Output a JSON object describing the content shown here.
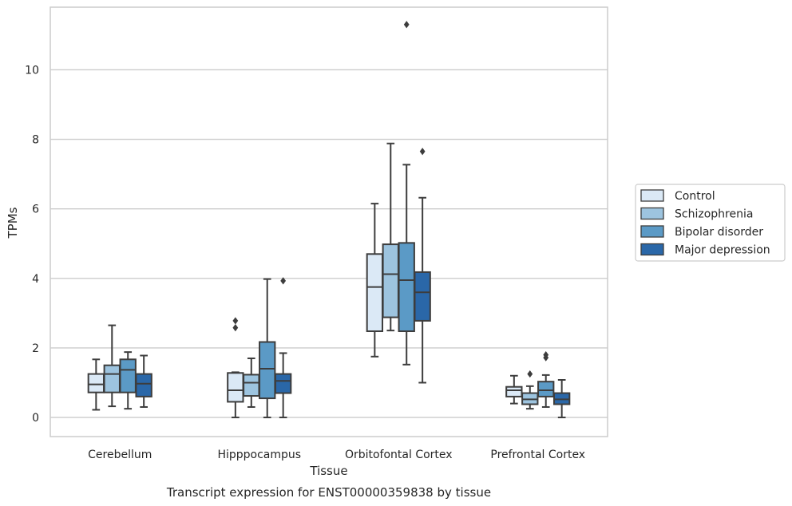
{
  "chart_data": {
    "type": "box",
    "title": "Transcript expression for ENST00000359838 by tissue",
    "xlabel": "Tissue",
    "ylabel": "TPMs",
    "ylim": [
      -0.55,
      11.8
    ],
    "yticks": [
      0,
      2,
      4,
      6,
      8,
      10
    ],
    "grid": "horizontal",
    "legend_position": "right",
    "categories": [
      "Cerebellum",
      "Hipppocampus",
      "Orbitofontal Cortex",
      "Prefrontal Cortex"
    ],
    "series": [
      {
        "name": "Control",
        "color": "#dbe9f6",
        "boxes": [
          {
            "min": 0.22,
            "q1": 0.72,
            "median": 0.95,
            "q3": 1.25,
            "max": 1.67,
            "outliers": []
          },
          {
            "min": 0.0,
            "q1": 0.45,
            "median": 0.78,
            "q3": 1.28,
            "max": 1.3,
            "outliers": [
              2.78,
              2.58
            ]
          },
          {
            "min": 1.75,
            "q1": 2.48,
            "median": 3.75,
            "q3": 4.7,
            "max": 6.15,
            "outliers": []
          },
          {
            "min": 0.4,
            "q1": 0.6,
            "median": 0.78,
            "q3": 0.88,
            "max": 1.2,
            "outliers": []
          }
        ]
      },
      {
        "name": "Schizophrenia",
        "color": "#9dc4df",
        "boxes": [
          {
            "min": 0.32,
            "q1": 0.72,
            "median": 1.25,
            "q3": 1.5,
            "max": 2.65,
            "outliers": []
          },
          {
            "min": 0.3,
            "q1": 0.62,
            "median": 1.0,
            "q3": 1.23,
            "max": 1.7,
            "outliers": []
          },
          {
            "min": 2.5,
            "q1": 2.88,
            "median": 4.12,
            "q3": 4.98,
            "max": 7.88,
            "outliers": []
          },
          {
            "min": 0.25,
            "q1": 0.38,
            "median": 0.52,
            "q3": 0.7,
            "max": 0.9,
            "outliers": [
              1.25
            ]
          }
        ]
      },
      {
        "name": "Bipolar disorder",
        "color": "#5b9ac6",
        "boxes": [
          {
            "min": 0.25,
            "q1": 0.72,
            "median": 1.37,
            "q3": 1.67,
            "max": 1.88,
            "outliers": []
          },
          {
            "min": 0.0,
            "q1": 0.55,
            "median": 1.4,
            "q3": 2.17,
            "max": 3.98,
            "outliers": []
          },
          {
            "min": 1.52,
            "q1": 2.48,
            "median": 3.95,
            "q3": 5.02,
            "max": 7.27,
            "outliers": [
              11.3
            ]
          },
          {
            "min": 0.3,
            "q1": 0.6,
            "median": 0.78,
            "q3": 1.03,
            "max": 1.22,
            "outliers": [
              1.72,
              1.8
            ]
          }
        ]
      },
      {
        "name": "Major depression",
        "color": "#2a67a8",
        "boxes": [
          {
            "min": 0.3,
            "q1": 0.6,
            "median": 0.97,
            "q3": 1.25,
            "max": 1.78,
            "outliers": []
          },
          {
            "min": 0.0,
            "q1": 0.7,
            "median": 1.05,
            "q3": 1.25,
            "max": 1.85,
            "outliers": [
              3.93
            ]
          },
          {
            "min": 1.0,
            "q1": 2.78,
            "median": 3.6,
            "q3": 4.18,
            "max": 6.32,
            "outliers": [
              7.65
            ]
          },
          {
            "min": 0.0,
            "q1": 0.38,
            "median": 0.52,
            "q3": 0.7,
            "max": 1.08,
            "outliers": []
          }
        ]
      }
    ]
  }
}
